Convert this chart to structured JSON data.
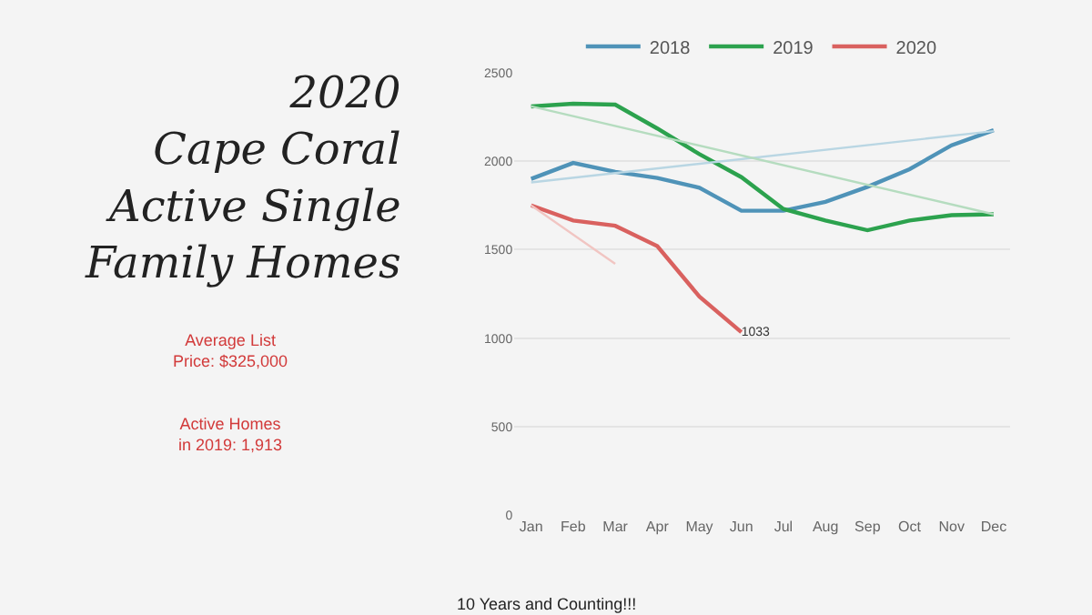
{
  "chart_data": {
    "type": "line",
    "title": "2020\nCape Coral\nActive Single\nFamily Homes",
    "categories": [
      "Jan",
      "Feb",
      "Mar",
      "Apr",
      "May",
      "Jun",
      "Jul",
      "Aug",
      "Sep",
      "Oct",
      "Nov",
      "Dec"
    ],
    "series": [
      {
        "name": "2018",
        "color": "#4f93b8",
        "values": [
          1900,
          1990,
          1940,
          1905,
          1850,
          1720,
          1720,
          1770,
          1855,
          1955,
          2090,
          2175
        ]
      },
      {
        "name": "2019",
        "color": "#2ca24e",
        "values": [
          2310,
          2325,
          2320,
          2185,
          2040,
          1910,
          1730,
          1665,
          1610,
          1665,
          1695,
          1700
        ]
      },
      {
        "name": "2020",
        "color": "#d9615f",
        "values": [
          1750,
          1665,
          1635,
          1520,
          1235,
          1033,
          null,
          null,
          null,
          null,
          null,
          null
        ],
        "value_labels": [
          null,
          null,
          null,
          null,
          null,
          "1033",
          null,
          null,
          null,
          null,
          null,
          null
        ]
      },
      {
        "type": "line",
        "color": "#b9d6e3",
        "x": [
          "Jan",
          "Dec"
        ],
        "values": [
          1880,
          2170
        ]
      },
      {
        "type": "line",
        "color": "#b5dcbf",
        "x": [
          "Jan",
          "Dec"
        ],
        "values": [
          2310,
          1700
        ]
      },
      {
        "type": "line",
        "color": "#f1c5c2",
        "x": [
          "Jan",
          "Mar"
        ],
        "values": [
          1750,
          1420
        ]
      }
    ],
    "ylim": [
      0,
      2500
    ],
    "yticks": [
      0,
      500,
      1000,
      1500,
      2000,
      2500
    ],
    "grid": "y",
    "legend": "top",
    "marker": "none",
    "line_style": "solid",
    "annotations": [
      "Average List\nPrice: $325,000",
      "Active Homes\nin 2019: 1,913",
      "10 Years and Counting!!!"
    ]
  }
}
